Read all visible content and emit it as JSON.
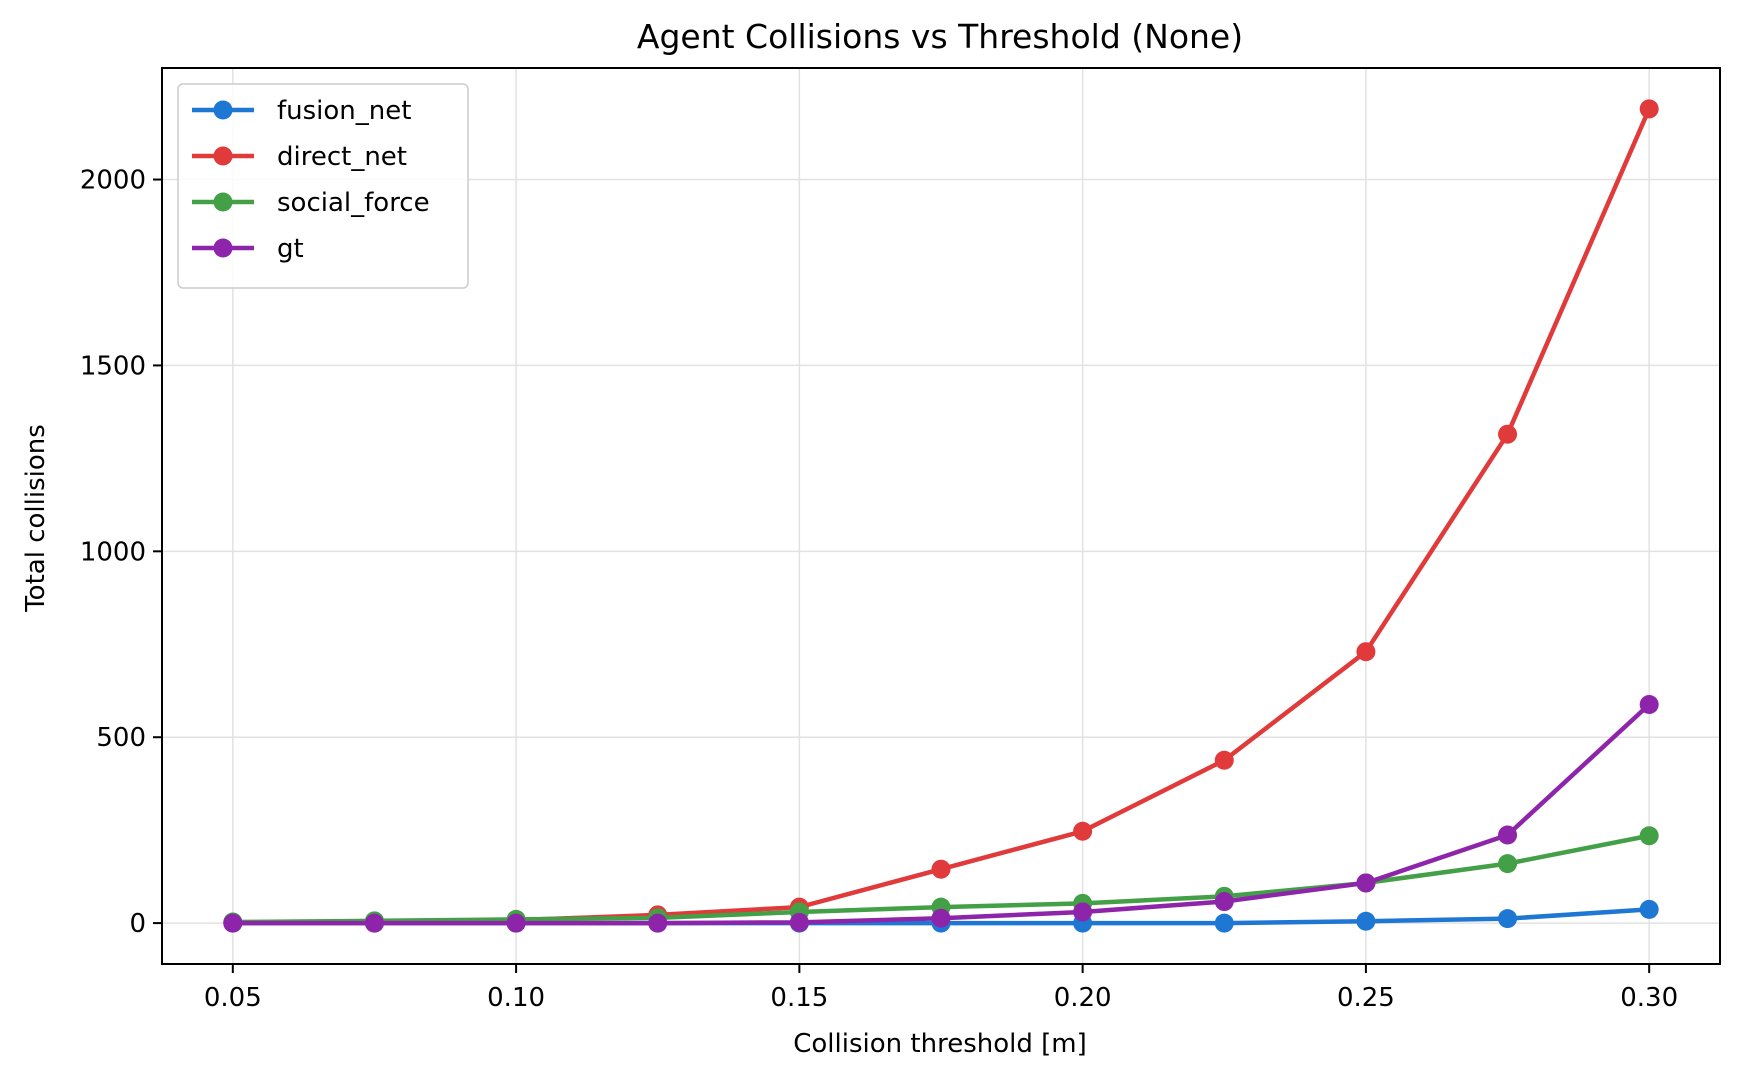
{
  "chart_data": {
    "type": "line",
    "title": "Agent Collisions vs Threshold (None)",
    "xlabel": "Collision threshold [m]",
    "ylabel": "Total collisions",
    "x": [
      0.05,
      0.075,
      0.1,
      0.125,
      0.15,
      0.175,
      0.2,
      0.225,
      0.25,
      0.275,
      0.3
    ],
    "xlim": [
      0.0375,
      0.3125
    ],
    "ylim": [
      -110,
      2300
    ],
    "xticks": [
      0.05,
      0.1,
      0.15,
      0.2,
      0.25,
      0.3
    ],
    "xtick_labels": [
      "0.05",
      "0.10",
      "0.15",
      "0.20",
      "0.25",
      "0.30"
    ],
    "yticks": [
      0,
      500,
      1000,
      1500,
      2000
    ],
    "ytick_labels": [
      "0",
      "500",
      "1000",
      "1500",
      "2000"
    ],
    "grid": true,
    "legend_position": "upper-left",
    "series": [
      {
        "name": "fusion_net",
        "color": "#1f77d4",
        "values": [
          0,
          0,
          0,
          0,
          0,
          0,
          0,
          0,
          5,
          12,
          37
        ]
      },
      {
        "name": "direct_net",
        "color": "#e03a3a",
        "values": [
          2,
          4,
          8,
          22,
          43,
          145,
          247,
          438,
          730,
          1315,
          2190
        ]
      },
      {
        "name": "social_force",
        "color": "#43a047",
        "values": [
          3,
          6,
          10,
          14,
          30,
          43,
          53,
          72,
          108,
          160,
          235
        ]
      },
      {
        "name": "gt",
        "color": "#8e24aa",
        "values": [
          0,
          0,
          0,
          0,
          2,
          13,
          30,
          58,
          108,
          237,
          588
        ]
      }
    ]
  }
}
